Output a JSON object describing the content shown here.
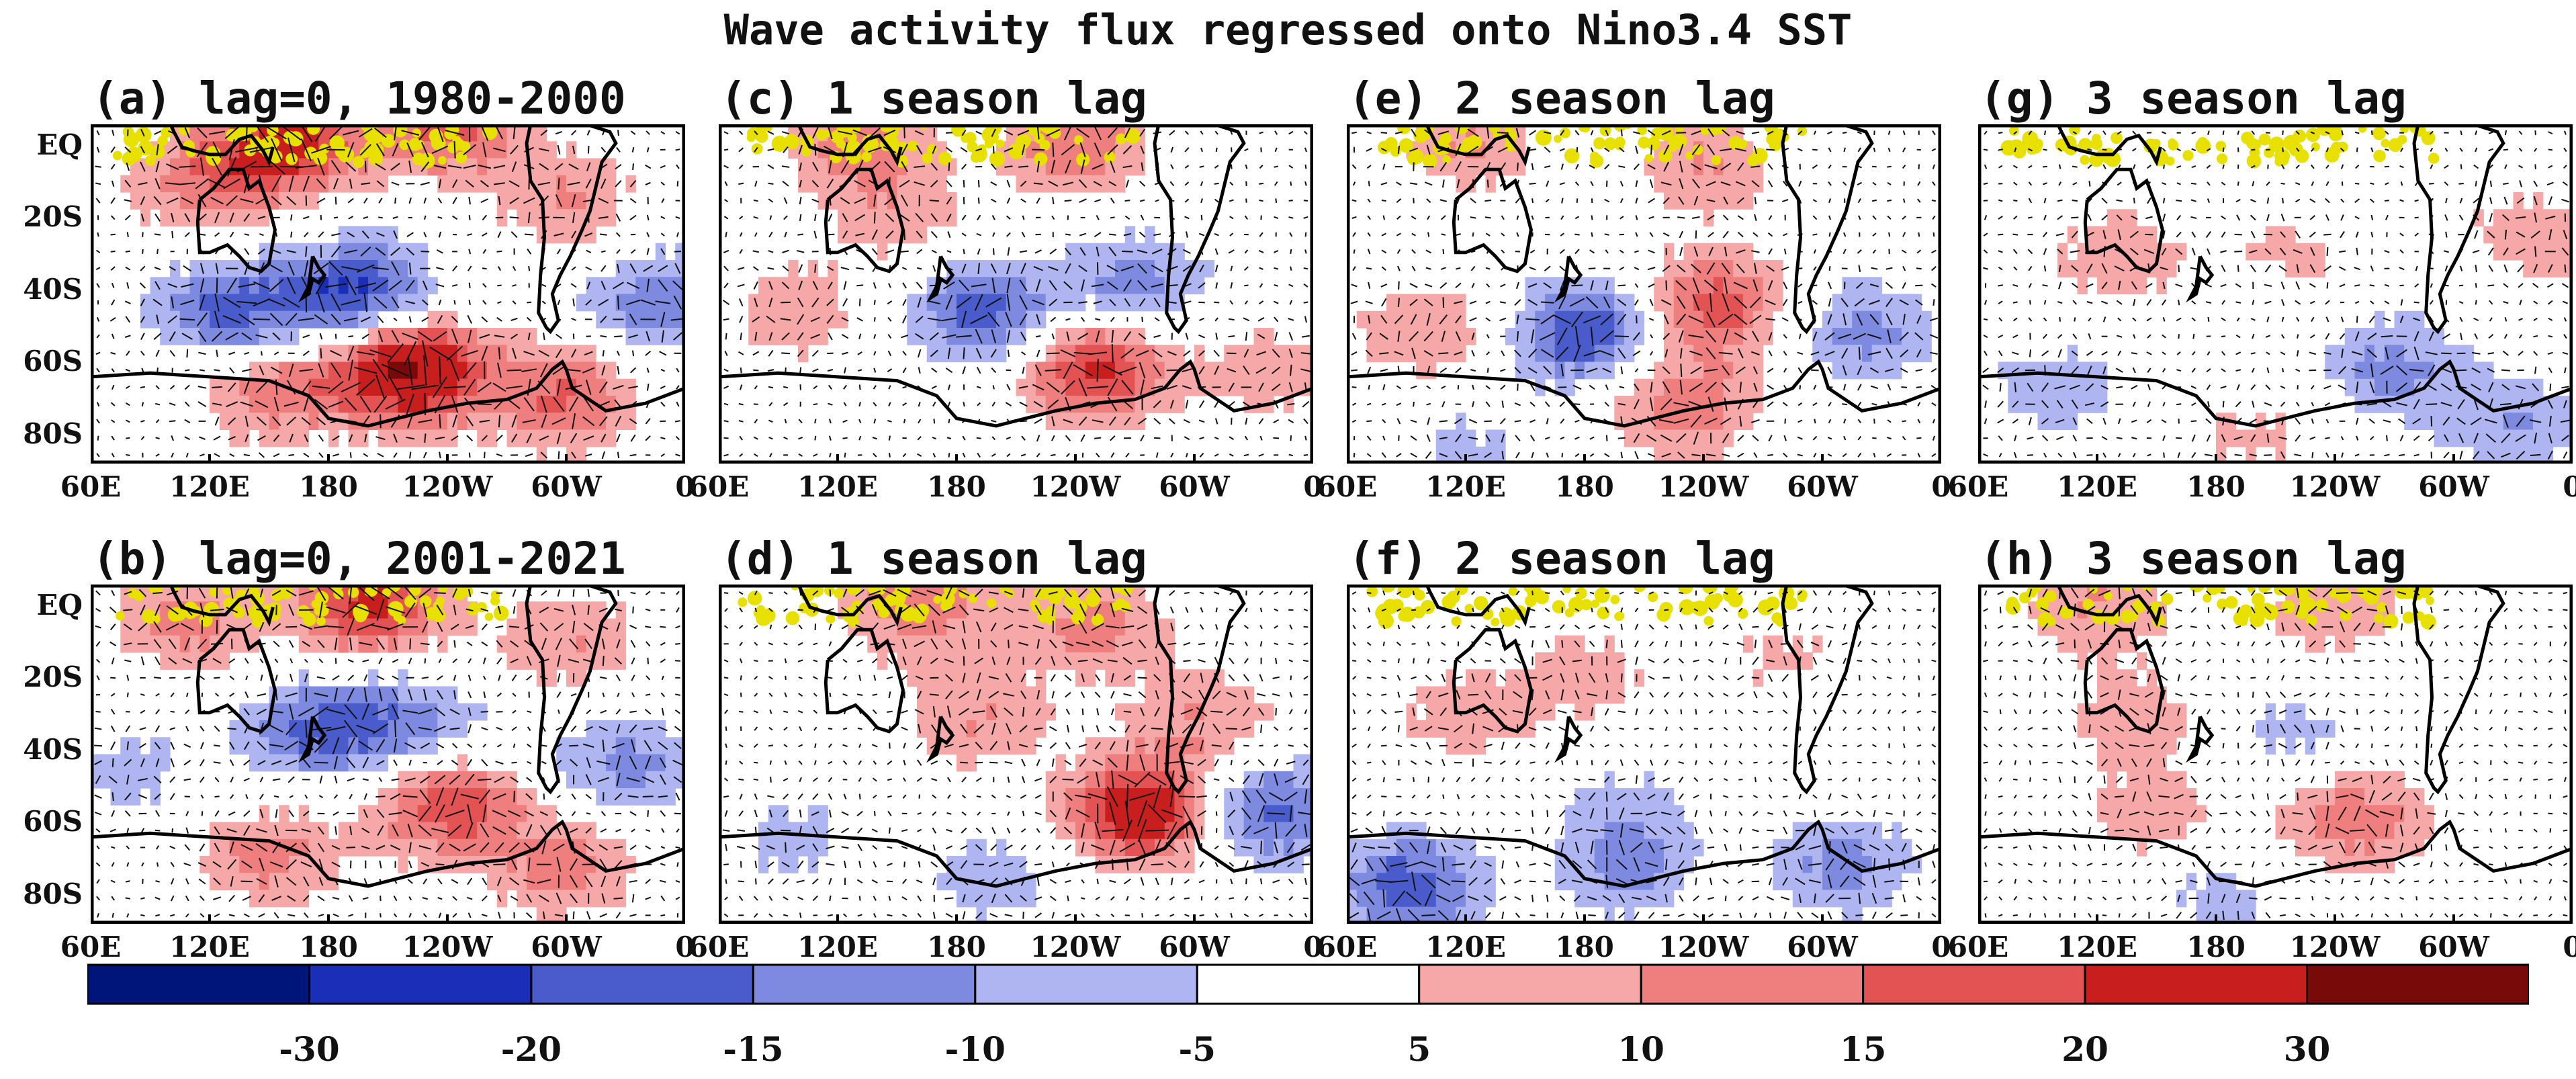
{
  "chart_data": {
    "type": "heatmap",
    "title": "Wave activity flux regressed onto Nino3.4 SST",
    "x_ticks": [
      "60E",
      "120E",
      "180",
      "120W",
      "60W",
      "0"
    ],
    "y_ticks": [
      "EQ",
      "20S",
      "40S",
      "60S",
      "80S"
    ],
    "xlim": [
      "60E",
      "0"
    ],
    "ylim": [
      "90S",
      "EQ"
    ],
    "colorbar": {
      "labels": [
        "-30",
        "-20",
        "-15",
        "-10",
        "-5",
        "5",
        "10",
        "15",
        "20",
        "30"
      ],
      "colors": [
        "#00157a",
        "#1a2eb8",
        "#4a5ccc",
        "#7d8ae0",
        "#aeb5f0",
        "#ffffff",
        "#f6a8a8",
        "#ef7f7f",
        "#e35353",
        "#c81e1e",
        "#780a0a"
      ]
    },
    "panels": [
      {
        "label": "(a) lag=0, 1980-2000",
        "lag_seasons": 0,
        "period": "1980-2000",
        "features": [
          {
            "lon": 160,
            "lat": -5,
            "value": 22
          },
          {
            "lon": 240,
            "lat": 0,
            "value": 18
          },
          {
            "lon": 115,
            "lat": -15,
            "value": 12
          },
          {
            "lon": 300,
            "lat": -20,
            "value": 10
          },
          {
            "lon": 195,
            "lat": -45,
            "value": -22
          },
          {
            "lon": 130,
            "lat": -50,
            "value": -18
          },
          {
            "lon": 345,
            "lat": -48,
            "value": -14
          },
          {
            "lon": 220,
            "lat": -65,
            "value": 32
          },
          {
            "lon": 150,
            "lat": -70,
            "value": 14
          },
          {
            "lon": 300,
            "lat": -72,
            "value": 16
          }
        ]
      },
      {
        "label": "(b) lag=0, 2001-2021",
        "lag_seasons": 0,
        "period": "2001-2021",
        "features": [
          {
            "lon": 200,
            "lat": -5,
            "value": 22
          },
          {
            "lon": 110,
            "lat": -10,
            "value": 12
          },
          {
            "lon": 300,
            "lat": -15,
            "value": 10
          },
          {
            "lon": 175,
            "lat": -38,
            "value": -16
          },
          {
            "lon": 225,
            "lat": -38,
            "value": -12
          },
          {
            "lon": 330,
            "lat": -48,
            "value": -12
          },
          {
            "lon": 80,
            "lat": -50,
            "value": -7
          },
          {
            "lon": 240,
            "lat": -58,
            "value": 20
          },
          {
            "lon": 150,
            "lat": -72,
            "value": 12
          },
          {
            "lon": 300,
            "lat": -75,
            "value": 12
          }
        ]
      },
      {
        "label": "(c) 1 season lag",
        "lag_seasons": 1,
        "features": [
          {
            "lon": 130,
            "lat": -5,
            "value": 12
          },
          {
            "lon": 240,
            "lat": -5,
            "value": 14
          },
          {
            "lon": 150,
            "lat": -25,
            "value": 8
          },
          {
            "lon": 195,
            "lat": -50,
            "value": -18
          },
          {
            "lon": 270,
            "lat": -42,
            "value": -12
          },
          {
            "lon": 100,
            "lat": -50,
            "value": 8
          },
          {
            "lon": 250,
            "lat": -65,
            "value": 22
          },
          {
            "lon": 340,
            "lat": -65,
            "value": 8
          }
        ]
      },
      {
        "label": "(d) 1 season lag",
        "lag_seasons": 1,
        "features": [
          {
            "lon": 160,
            "lat": -5,
            "value": 14
          },
          {
            "lon": 250,
            "lat": -10,
            "value": 12
          },
          {
            "lon": 190,
            "lat": -35,
            "value": 10
          },
          {
            "lon": 305,
            "lat": -35,
            "value": 10
          },
          {
            "lon": 275,
            "lat": -60,
            "value": 28
          },
          {
            "lon": 335,
            "lat": -60,
            "value": -18
          },
          {
            "lon": 200,
            "lat": -78,
            "value": -8
          },
          {
            "lon": 100,
            "lat": -68,
            "value": -7
          }
        ]
      },
      {
        "label": "(e) 2 season lag",
        "lag_seasons": 2,
        "features": [
          {
            "lon": 120,
            "lat": -5,
            "value": 10
          },
          {
            "lon": 240,
            "lat": -10,
            "value": 10
          },
          {
            "lon": 100,
            "lat": -55,
            "value": 10
          },
          {
            "lon": 180,
            "lat": -55,
            "value": -20
          },
          {
            "lon": 245,
            "lat": -48,
            "value": 18
          },
          {
            "lon": 320,
            "lat": -55,
            "value": -12
          },
          {
            "lon": 230,
            "lat": -75,
            "value": 14
          },
          {
            "lon": 120,
            "lat": -85,
            "value": -6
          }
        ]
      },
      {
        "label": "(f) 2 season lag",
        "lag_seasons": 2,
        "features": [
          {
            "lon": 120,
            "lat": -35,
            "value": 8
          },
          {
            "lon": 180,
            "lat": -25,
            "value": 7
          },
          {
            "lon": 280,
            "lat": -20,
            "value": 6
          },
          {
            "lon": 90,
            "lat": -80,
            "value": -18
          },
          {
            "lon": 200,
            "lat": -75,
            "value": -10
          },
          {
            "lon": 310,
            "lat": -75,
            "value": -12
          },
          {
            "lon": 200,
            "lat": -60,
            "value": -6
          }
        ]
      },
      {
        "label": "(g) 3 season lag",
        "lag_seasons": 3,
        "features": [
          {
            "lon": 130,
            "lat": -35,
            "value": 8
          },
          {
            "lon": 340,
            "lat": -30,
            "value": 8
          },
          {
            "lon": 220,
            "lat": -35,
            "value": 6
          },
          {
            "lon": 270,
            "lat": -65,
            "value": -12
          },
          {
            "lon": 100,
            "lat": -70,
            "value": -8
          },
          {
            "lon": 330,
            "lat": -80,
            "value": -10
          },
          {
            "lon": 200,
            "lat": -82,
            "value": 6
          }
        ]
      },
      {
        "label": "(h) 3 season lag",
        "lag_seasons": 3,
        "features": [
          {
            "lon": 120,
            "lat": -5,
            "value": 10
          },
          {
            "lon": 240,
            "lat": -5,
            "value": 10
          },
          {
            "lon": 140,
            "lat": -35,
            "value": 8
          },
          {
            "lon": 220,
            "lat": -40,
            "value": -7
          },
          {
            "lon": 250,
            "lat": -62,
            "value": 14
          },
          {
            "lon": 150,
            "lat": -62,
            "value": 8
          },
          {
            "lon": 180,
            "lat": -82,
            "value": -7
          }
        ]
      }
    ]
  }
}
